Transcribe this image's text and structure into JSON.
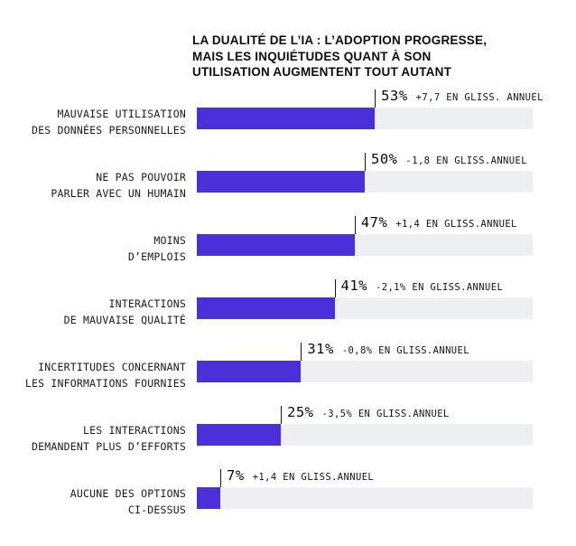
{
  "header": {
    "title_lines": [
      "LA DUALITÉ DE L’IA : L’ADOPTION PROGRESSE,",
      "MAIS LES INQUIÉTUDES QUANT À SON",
      "UTILISATION AUGMENTENT TOUT AUTANT"
    ]
  },
  "chart_data": {
    "type": "bar",
    "orientation": "horizontal",
    "title": "LA DUALITÉ DE L’IA : L’ADOPTION PROGRESSE, MAIS LES INQUIÉTUDES QUANT À SON UTILISATION AUGMENTENT TOUT AUTANT",
    "xlim": [
      0,
      100
    ],
    "unit": "%",
    "grid": false,
    "legend": false,
    "colors": {
      "bar": "#4b2fd9",
      "track": "#edeff2",
      "marker_line": "#151515"
    },
    "rows": [
      {
        "label_lines": [
          "MAUVAISE UTILISATION",
          "DES DONNÉES PERSONNELLES"
        ],
        "value": 53,
        "value_label": "53%",
        "delta": "+7,7 EN GLISS. ANNUEL"
      },
      {
        "label_lines": [
          "NE PAS POUVOIR",
          "PARLER AVEC UN HUMAIN"
        ],
        "value": 50,
        "value_label": "50%",
        "delta": "-1,8 EN GLISS.ANNUEL"
      },
      {
        "label_lines": [
          "MOINS",
          "D’EMPLOIS"
        ],
        "value": 47,
        "value_label": "47%",
        "delta": "+1,4 EN GLISS.ANNUEL"
      },
      {
        "label_lines": [
          "INTERACTIONS",
          "DE MAUVAISE QUALITÉ"
        ],
        "value": 41,
        "value_label": "41%",
        "delta": "-2,1% EN GLISS.ANNUEL"
      },
      {
        "label_lines": [
          "INCERTITUDES CONCERNANT",
          "LES INFORMATIONS FOURNIES"
        ],
        "value": 31,
        "value_label": "31%",
        "delta": "-0,8% EN GLISS.ANNUEL"
      },
      {
        "label_lines": [
          "LES INTERACTIONS",
          "DEMANDENT PLUS D’EFFORTS"
        ],
        "value": 25,
        "value_label": "25%",
        "delta": "-3,5% EN GLISS.ANNUEL"
      },
      {
        "label_lines": [
          "AUCUNE DES OPTIONS",
          "CI-DESSUS"
        ],
        "value": 7,
        "value_label": "7%",
        "delta": "+1,4 EN GLISS.ANNUEL"
      }
    ]
  }
}
